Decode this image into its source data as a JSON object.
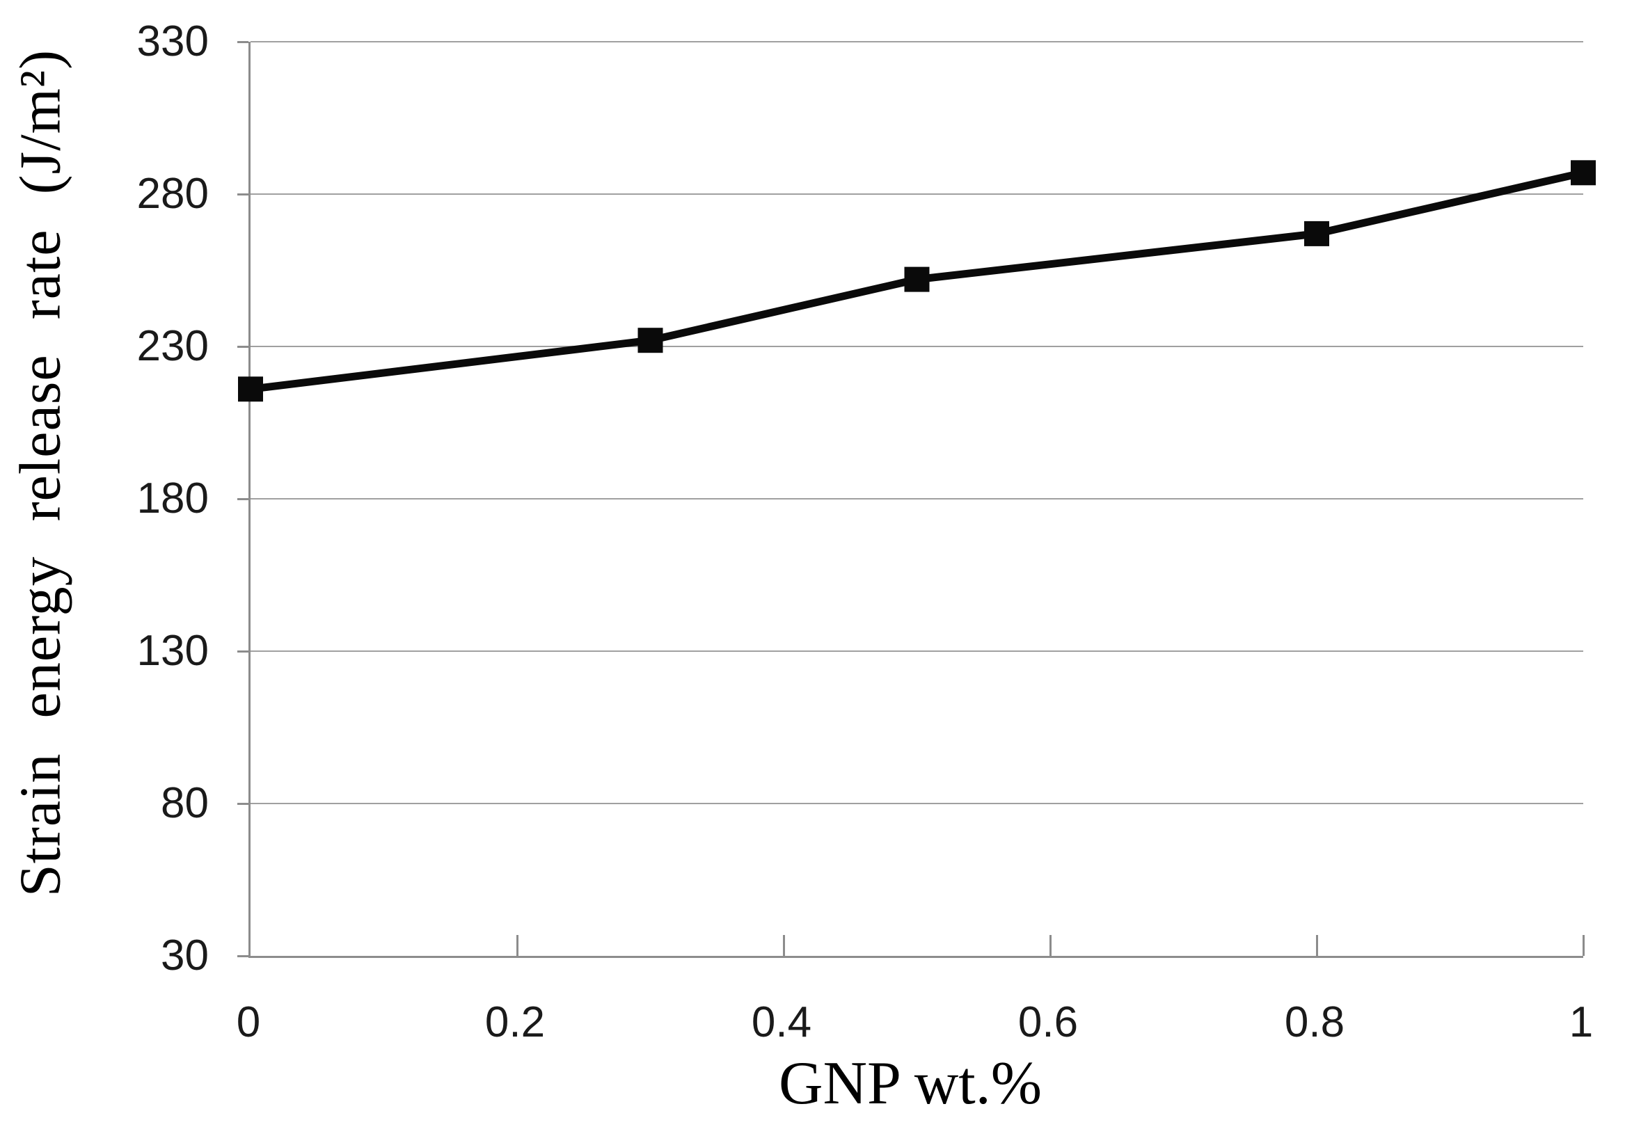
{
  "chart_data": {
    "type": "line",
    "title": "",
    "xlabel": "GNP wt.%",
    "ylabel": "Strain energy release rate (J/m²)",
    "xlim": [
      0,
      1
    ],
    "ylim": [
      30,
      330
    ],
    "grid": "horizontal",
    "legend": "none",
    "x_ticks": [
      {
        "value": 0,
        "label": "0"
      },
      {
        "value": 0.2,
        "label": "0.2"
      },
      {
        "value": 0.4,
        "label": "0.4"
      },
      {
        "value": 0.6,
        "label": "0.6"
      },
      {
        "value": 0.8,
        "label": "0.8"
      },
      {
        "value": 1,
        "label": "1"
      }
    ],
    "y_ticks": [
      {
        "value": 330,
        "label": "330"
      },
      {
        "value": 280,
        "label": "280"
      },
      {
        "value": 230,
        "label": "230"
      },
      {
        "value": 180,
        "label": "180"
      },
      {
        "value": 130,
        "label": "130"
      },
      {
        "value": 80,
        "label": "80"
      },
      {
        "value": 30,
        "label": "30"
      }
    ],
    "series": [
      {
        "name": "Strain energy release rate",
        "marker": "square",
        "x": [
          0,
          0.3,
          0.5,
          0.8,
          1
        ],
        "y": [
          216,
          232,
          252,
          267,
          287
        ]
      }
    ],
    "colors": {
      "line": "#0a0a0a",
      "marker": "#0a0a0a",
      "gridline": "#a0a0a0",
      "axis": "#8c8c8c",
      "tick_text": "#1a1a1a",
      "title_text": "#000000"
    }
  }
}
